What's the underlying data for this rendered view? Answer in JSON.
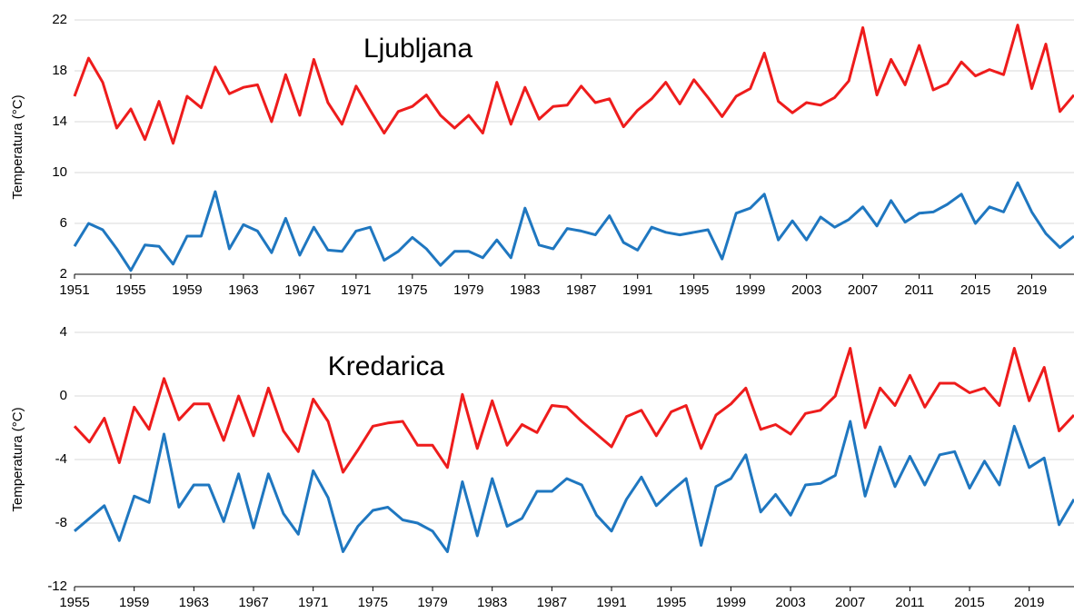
{
  "chart_data": [
    {
      "type": "line",
      "title": "Ljubljana",
      "ylabel": "Temperatura (°C)",
      "x": [
        1951,
        1952,
        1953,
        1954,
        1955,
        1956,
        1957,
        1958,
        1959,
        1960,
        1961,
        1962,
        1963,
        1964,
        1965,
        1966,
        1967,
        1968,
        1969,
        1970,
        1971,
        1972,
        1973,
        1974,
        1975,
        1976,
        1977,
        1978,
        1979,
        1980,
        1981,
        1982,
        1983,
        1984,
        1985,
        1986,
        1987,
        1988,
        1989,
        1990,
        1991,
        1992,
        1993,
        1994,
        1995,
        1996,
        1997,
        1998,
        1999,
        2000,
        2001,
        2002,
        2003,
        2004,
        2005,
        2006,
        2007,
        2008,
        2009,
        2010,
        2011,
        2012,
        2013,
        2014,
        2015,
        2016,
        2017,
        2018,
        2019,
        2020,
        2021,
        2022
      ],
      "series": [
        {
          "color": "#ee1c1c",
          "values": [
            16.0,
            19.0,
            17.1,
            13.5,
            15.0,
            12.6,
            15.6,
            12.3,
            16.0,
            15.1,
            18.3,
            16.2,
            16.7,
            16.9,
            14.0,
            17.7,
            14.5,
            18.9,
            15.5,
            13.8,
            16.8,
            14.9,
            13.1,
            14.8,
            15.2,
            16.1,
            14.5,
            13.5,
            14.5,
            13.1,
            17.1,
            13.8,
            16.7,
            14.2,
            15.2,
            15.3,
            16.8,
            15.5,
            15.8,
            13.6,
            14.9,
            15.8,
            17.1,
            15.4,
            17.3,
            15.9,
            14.4,
            16.0,
            16.6,
            19.4,
            15.6,
            14.7,
            15.5,
            15.3,
            15.9,
            17.2,
            21.4,
            16.1,
            18.9,
            16.9,
            20.0,
            16.5,
            17.0,
            18.7,
            17.6,
            18.1,
            17.7,
            21.6,
            16.6,
            20.1,
            14.8,
            16.1
          ]
        },
        {
          "color": "#1f77c0",
          "values": [
            4.2,
            6.0,
            5.5,
            4.0,
            2.3,
            4.3,
            4.2,
            2.8,
            5.0,
            5.0,
            8.5,
            4.0,
            5.9,
            5.4,
            3.7,
            6.4,
            3.5,
            5.7,
            3.9,
            3.8,
            5.4,
            5.7,
            3.1,
            3.8,
            4.9,
            4.0,
            2.7,
            3.8,
            3.8,
            3.3,
            4.7,
            3.3,
            7.2,
            4.3,
            4.0,
            5.6,
            5.4,
            5.1,
            6.6,
            4.5,
            3.9,
            5.7,
            5.3,
            5.1,
            5.3,
            5.5,
            3.2,
            6.8,
            7.2,
            8.3,
            4.7,
            6.2,
            4.7,
            6.5,
            5.7,
            6.3,
            7.3,
            5.8,
            7.8,
            6.1,
            6.8,
            6.9,
            7.5,
            8.3,
            6.0,
            7.3,
            6.9,
            9.2,
            6.9,
            5.2,
            4.1,
            5.0
          ]
        }
      ],
      "xlim": [
        1951,
        2022
      ],
      "xticks": [
        1951,
        1955,
        1959,
        1963,
        1967,
        1971,
        1975,
        1979,
        1983,
        1987,
        1991,
        1995,
        1999,
        2003,
        2007,
        2011,
        2015,
        2019
      ],
      "ylim": [
        2,
        22
      ],
      "yticks": [
        2,
        6,
        10,
        14,
        18,
        22
      ],
      "grid": true
    },
    {
      "type": "line",
      "title": "Kredarica",
      "ylabel": "Temperatura (°C)",
      "x": [
        1955,
        1956,
        1957,
        1958,
        1959,
        1960,
        1961,
        1962,
        1963,
        1964,
        1965,
        1966,
        1967,
        1968,
        1969,
        1970,
        1971,
        1972,
        1973,
        1974,
        1975,
        1976,
        1977,
        1978,
        1979,
        1980,
        1981,
        1982,
        1983,
        1984,
        1985,
        1986,
        1987,
        1988,
        1989,
        1990,
        1991,
        1992,
        1993,
        1994,
        1995,
        1996,
        1997,
        1998,
        1999,
        2000,
        2001,
        2002,
        2003,
        2004,
        2005,
        2006,
        2007,
        2008,
        2009,
        2010,
        2011,
        2012,
        2013,
        2014,
        2015,
        2016,
        2017,
        2018,
        2019,
        2020,
        2021,
        2022
      ],
      "series": [
        {
          "color": "#ee1c1c",
          "values": [
            -1.9,
            -2.9,
            -1.4,
            -4.2,
            -0.7,
            -2.1,
            1.1,
            -1.5,
            -0.5,
            -0.5,
            -2.8,
            0.0,
            -2.5,
            0.5,
            -2.2,
            -3.5,
            -0.2,
            -1.6,
            -4.8,
            -3.4,
            -1.9,
            -1.7,
            -1.6,
            -3.1,
            -3.1,
            -4.5,
            0.1,
            -3.3,
            -0.3,
            -3.1,
            -1.8,
            -2.3,
            -0.6,
            -0.7,
            -1.6,
            -2.4,
            -3.2,
            -1.3,
            -0.9,
            -2.5,
            -1.0,
            -0.6,
            -3.3,
            -1.2,
            -0.5,
            0.5,
            -2.1,
            -1.8,
            -2.4,
            -1.1,
            -0.9,
            0.0,
            3.0,
            -2.0,
            0.5,
            -0.6,
            1.3,
            -0.7,
            0.8,
            0.8,
            0.2,
            0.5,
            -0.6,
            3.0,
            -0.3,
            1.8,
            -2.2,
            -1.2
          ]
        },
        {
          "color": "#1f77c0",
          "values": [
            -8.5,
            -7.7,
            -6.9,
            -9.1,
            -6.3,
            -6.7,
            -2.4,
            -7.0,
            -5.6,
            -5.6,
            -7.9,
            -4.9,
            -8.3,
            -4.9,
            -7.4,
            -8.7,
            -4.7,
            -6.4,
            -9.8,
            -8.2,
            -7.2,
            -7.0,
            -7.8,
            -8.0,
            -8.5,
            -9.8,
            -5.4,
            -8.8,
            -5.2,
            -8.2,
            -7.7,
            -6.0,
            -6.0,
            -5.2,
            -5.6,
            -7.5,
            -8.5,
            -6.5,
            -5.1,
            -6.9,
            -6.0,
            -5.2,
            -9.4,
            -5.7,
            -5.2,
            -3.7,
            -7.3,
            -6.2,
            -7.5,
            -5.6,
            -5.5,
            -5.0,
            -1.6,
            -6.3,
            -3.2,
            -5.7,
            -3.8,
            -5.6,
            -3.7,
            -3.5,
            -5.8,
            -4.1,
            -5.6,
            -1.9,
            -4.5,
            -3.9,
            -8.1,
            -6.5
          ]
        }
      ],
      "xlim": [
        1955,
        2022
      ],
      "xticks": [
        1955,
        1959,
        1963,
        1967,
        1971,
        1975,
        1979,
        1983,
        1987,
        1991,
        1995,
        1999,
        2003,
        2007,
        2011,
        2015,
        2019
      ],
      "ylim": [
        -12,
        4
      ],
      "yticks": [
        -12,
        -8,
        -4,
        0,
        4
      ],
      "grid": true
    }
  ]
}
